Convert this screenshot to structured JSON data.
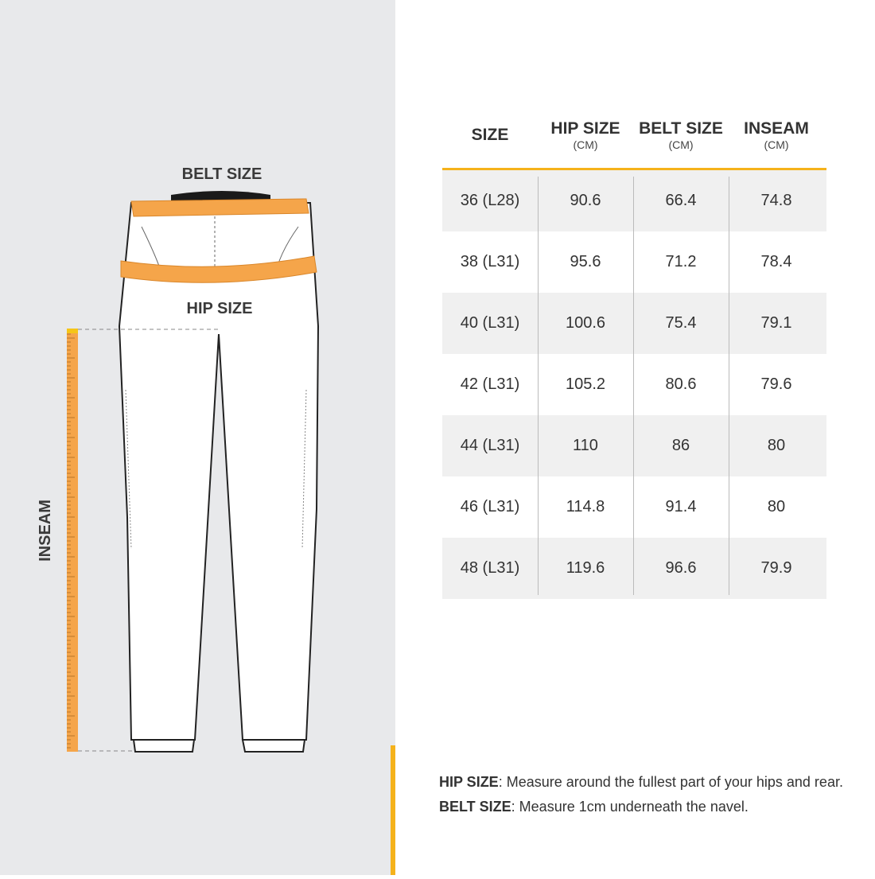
{
  "diagram": {
    "belt_label": "BELT SIZE",
    "hip_label": "HIP SIZE",
    "inseam_label": "INSEAM"
  },
  "table": {
    "header": [
      {
        "label": "SIZE"
      },
      {
        "label": "HIP SIZE",
        "unit": "(CM)"
      },
      {
        "label": "BELT SIZE",
        "unit": "(CM)"
      },
      {
        "label": "INSEAM",
        "unit": "(CM)"
      }
    ],
    "rows": [
      [
        "36 (L28)",
        90.6,
        66.4,
        74.8
      ],
      [
        "38 (L31)",
        95.6,
        71.2,
        78.4
      ],
      [
        "40 (L31)",
        100.6,
        75.4,
        79.1
      ],
      [
        "42 (L31)",
        105.2,
        80.6,
        79.6
      ],
      [
        "44 (L31)",
        110,
        86,
        80
      ],
      [
        "46 (L31)",
        114.8,
        91.4,
        80
      ],
      [
        "48 (L31)",
        119.6,
        96.6,
        79.9
      ]
    ]
  },
  "notes": [
    {
      "term": "HIP SIZE",
      "text": ": Measure around the fullest part of your hips and rear."
    },
    {
      "term": "BELT SIZE",
      "text": ": Measure 1cm underneath the navel."
    }
  ]
}
